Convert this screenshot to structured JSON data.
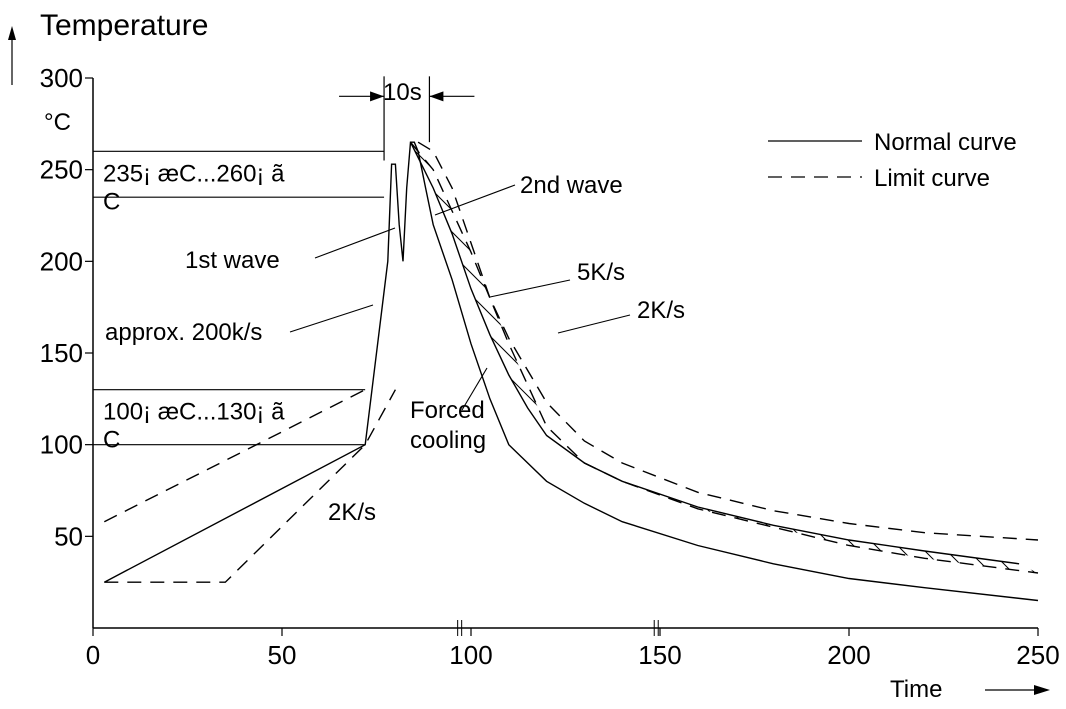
{
  "chart_data": {
    "type": "line",
    "title": "",
    "ylabel": "Temperature",
    "yunit": "°C",
    "xlabel": "Time",
    "xlim": [
      0,
      250
    ],
    "ylim": [
      0,
      300
    ],
    "x_ticks": [
      0,
      50,
      100,
      150,
      200,
      250
    ],
    "y_ticks": [
      50,
      100,
      150,
      200,
      250,
      300
    ],
    "legend": {
      "placement": "top-right",
      "entries": [
        {
          "label": "Normal curve",
          "style": "solid"
        },
        {
          "label": "Limit curve",
          "style": "dashed"
        }
      ]
    },
    "series": [
      {
        "name": "Normal curve",
        "style": "solid",
        "x": [
          3,
          72,
          78,
          79,
          80,
          81,
          82,
          83,
          84,
          85,
          86,
          87,
          88,
          90,
          95,
          100,
          105,
          110,
          120,
          130,
          140,
          160,
          180,
          200,
          220,
          250
        ],
        "y": [
          25,
          100,
          200,
          253,
          253,
          220,
          200,
          240,
          265,
          265,
          260,
          250,
          240,
          220,
          190,
          155,
          125,
          100,
          80,
          68,
          58,
          45,
          35,
          27,
          22,
          15
        ]
      },
      {
        "name": "Normal curve",
        "style": "solid",
        "x": [
          84,
          90,
          95,
          100,
          105,
          110,
          115,
          120,
          130,
          140,
          160,
          180,
          200,
          220,
          245
        ],
        "y": [
          265,
          240,
          215,
          185,
          160,
          138,
          120,
          105,
          90,
          80,
          66,
          56,
          48,
          42,
          35
        ]
      },
      {
        "name": "Limit curve",
        "style": "dashed",
        "x": [
          3,
          35,
          72,
          80
        ],
        "y": [
          25,
          25,
          100,
          130
        ]
      },
      {
        "name": "Limit curve",
        "style": "dashed",
        "x": [
          3,
          72
        ],
        "y": [
          58,
          130
        ]
      },
      {
        "name": "Limit curve",
        "style": "dashed",
        "x": [
          86,
          90,
          95,
          100,
          105,
          110,
          120,
          130,
          140,
          160,
          180,
          200,
          220,
          250
        ],
        "y": [
          265,
          260,
          240,
          210,
          180,
          158,
          123,
          102,
          90,
          74,
          64,
          57,
          52,
          48
        ]
      },
      {
        "name": "Limit curve",
        "style": "dashed",
        "x": [
          84,
          90,
          100,
          110,
          120,
          130,
          140,
          160,
          180,
          200,
          220,
          250
        ],
        "y": [
          265,
          250,
          205,
          155,
          110,
          90,
          80,
          65,
          55,
          45,
          38,
          30
        ]
      }
    ],
    "bands": [
      {
        "from": 235,
        "to": 260,
        "label": "235¡ æC...260¡ ã\nC"
      },
      {
        "from": 100,
        "to": 130,
        "label": "100¡ æC...130¡ ã\nC"
      }
    ],
    "annotations": [
      {
        "text": "10s",
        "x": 82,
        "y": 290
      },
      {
        "text": "1st wave",
        "x": 82,
        "y": 210
      },
      {
        "text": "2nd wave",
        "x": 100,
        "y": 235
      },
      {
        "text": "approx. 200k/s",
        "x": 75,
        "y": 160
      },
      {
        "text": "5K/s",
        "x": 105,
        "y": 180
      },
      {
        "text": "2K/s",
        "x": 125,
        "y": 163
      },
      {
        "text": "Forced\ncooling",
        "x": 107,
        "y": 135
      },
      {
        "text": "2K/s",
        "x": 60,
        "y": 65
      }
    ]
  }
}
